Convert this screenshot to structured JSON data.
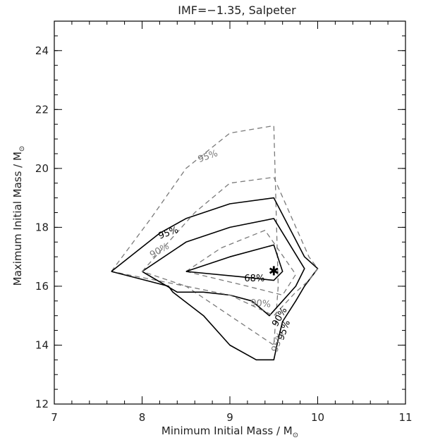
{
  "chart_data": {
    "type": "line",
    "title": "IMF=−1.35, Salpeter",
    "xlabel": "Minimum Initial Mass / M",
    "ylabel": "Maximum Initial Mass / M",
    "unit_symbol": "⊙",
    "xlim": [
      7,
      11
    ],
    "ylim": [
      12,
      25
    ],
    "xticks": [
      7,
      8,
      9,
      10,
      11
    ],
    "yticks": [
      12,
      14,
      16,
      18,
      20,
      22,
      24
    ],
    "x_minor_step": 0.2,
    "y_minor_step": 0.5,
    "colors": {
      "solid": "#000000",
      "dashed": "#7a7a7a",
      "frame": "#000000"
    },
    "series": [
      {
        "style": "dashed",
        "color": "#7a7a7a",
        "points": [
          [
            7.65,
            16.5
          ],
          [
            8.1,
            18.3
          ],
          [
            8.5,
            20.0
          ],
          [
            9.0,
            21.2
          ],
          [
            9.5,
            21.45
          ],
          [
            9.55,
            16.0
          ],
          [
            9.5,
            14.0
          ],
          [
            9.0,
            15.0
          ],
          [
            8.5,
            16.0
          ],
          [
            7.65,
            16.5
          ]
        ]
      },
      {
        "style": "solid",
        "color": "#000000",
        "points": [
          [
            7.65,
            16.5
          ],
          [
            8.2,
            17.8
          ],
          [
            8.5,
            18.3
          ],
          [
            9.0,
            18.8
          ],
          [
            9.5,
            19.0
          ],
          [
            9.85,
            17.0
          ],
          [
            10.0,
            16.6
          ],
          [
            9.85,
            16.0
          ],
          [
            9.75,
            15.5
          ],
          [
            9.6,
            14.8
          ],
          [
            9.55,
            14.2
          ],
          [
            9.5,
            13.5
          ],
          [
            9.3,
            13.5
          ],
          [
            9.0,
            14.0
          ],
          [
            8.7,
            15.0
          ],
          [
            8.35,
            15.8
          ],
          [
            8.3,
            16.0
          ],
          [
            7.65,
            16.5
          ]
        ]
      },
      {
        "style": "solid",
        "color": "#000000",
        "points": [
          [
            8.0,
            16.5
          ],
          [
            8.5,
            17.5
          ],
          [
            9.0,
            18.0
          ],
          [
            9.5,
            18.3
          ],
          [
            9.85,
            16.6
          ],
          [
            9.75,
            16.0
          ],
          [
            9.6,
            15.5
          ],
          [
            9.45,
            15.0
          ],
          [
            9.25,
            15.5
          ],
          [
            9.0,
            15.7
          ],
          [
            8.7,
            15.8
          ],
          [
            8.4,
            15.8
          ],
          [
            8.0,
            16.5
          ]
        ]
      },
      {
        "style": "dashed",
        "color": "#7a7a7a",
        "points": [
          [
            8.0,
            16.5
          ],
          [
            8.3,
            17.5
          ],
          [
            8.6,
            18.5
          ],
          [
            9.0,
            19.5
          ],
          [
            9.5,
            19.7
          ],
          [
            9.9,
            17.0
          ],
          [
            10.0,
            16.6
          ],
          [
            9.9,
            16.2
          ],
          [
            9.75,
            15.8
          ],
          [
            9.5,
            15.0
          ],
          [
            9.0,
            15.7
          ],
          [
            8.5,
            16.0
          ],
          [
            8.0,
            16.5
          ]
        ]
      },
      {
        "style": "dashed",
        "color": "#7a7a7a",
        "points": [
          [
            8.5,
            16.5
          ],
          [
            8.9,
            17.3
          ],
          [
            9.4,
            17.9
          ],
          [
            9.75,
            16.4
          ],
          [
            9.6,
            15.7
          ],
          [
            9.2,
            16.0
          ],
          [
            8.5,
            16.5
          ]
        ]
      },
      {
        "style": "solid",
        "color": "#000000",
        "points": [
          [
            8.5,
            16.5
          ],
          [
            9.0,
            17.0
          ],
          [
            9.5,
            17.4
          ],
          [
            9.6,
            16.5
          ],
          [
            9.5,
            16.2
          ],
          [
            9.2,
            16.3
          ],
          [
            8.5,
            16.5
          ]
        ]
      }
    ],
    "best_fit_point": {
      "x": 9.5,
      "y": 16.5,
      "marker": "✱"
    },
    "annotations": [
      {
        "text": "95%",
        "x": 8.3,
        "y": 17.8,
        "color": "#000000",
        "rotate": -20
      },
      {
        "text": "90%",
        "x": 8.2,
        "y": 17.2,
        "color": "#7a7a7a",
        "rotate": -30
      },
      {
        "text": "95%",
        "x": 8.75,
        "y": 20.4,
        "color": "#7a7a7a",
        "rotate": -20
      },
      {
        "text": "68%",
        "x": 9.28,
        "y": 16.25,
        "color": "#000000",
        "rotate": 0
      },
      {
        "text": "90%",
        "x": 9.35,
        "y": 15.4,
        "color": "#7a7a7a",
        "rotate": 5
      },
      {
        "text": "90%",
        "x": 9.57,
        "y": 14.95,
        "color": "#000000",
        "rotate": -60
      },
      {
        "text": "95%",
        "x": 9.62,
        "y": 14.5,
        "color": "#000000",
        "rotate": -70
      },
      {
        "text": "95%",
        "x": 9.55,
        "y": 14.1,
        "color": "#7a7a7a",
        "rotate": -70
      }
    ]
  }
}
